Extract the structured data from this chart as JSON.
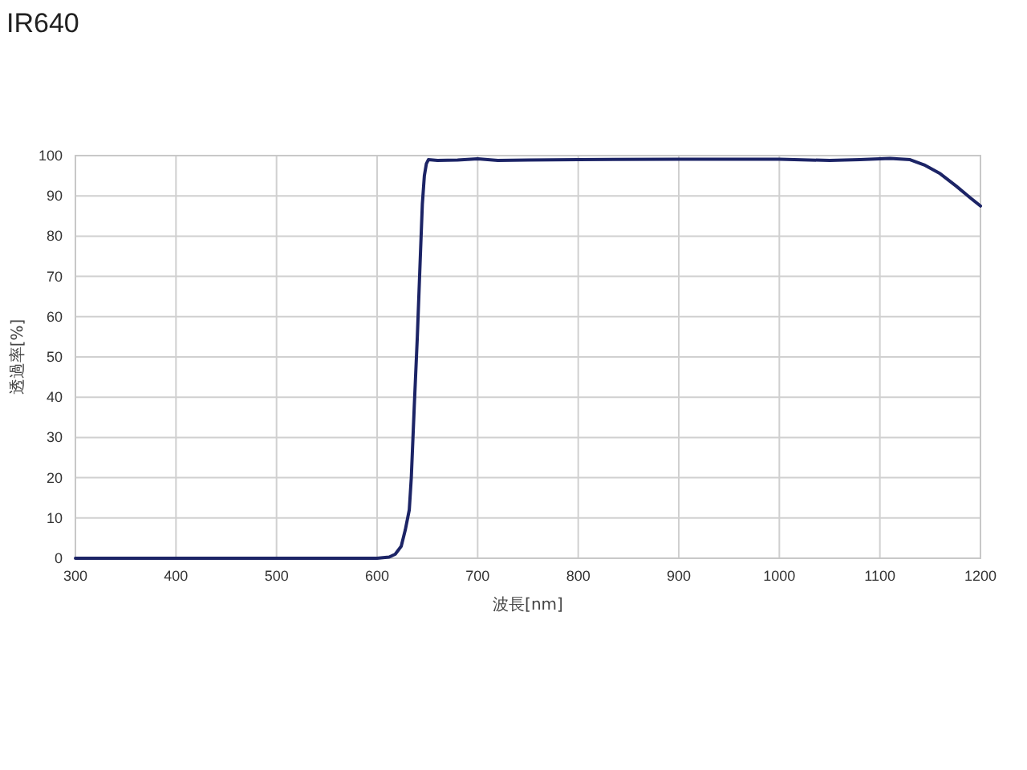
{
  "chart_data": {
    "type": "line",
    "title": "IR640",
    "xlabel": "波長[nm]",
    "ylabel": "透過率[%]",
    "xlim": [
      300,
      1200
    ],
    "xticks": [
      300,
      400,
      500,
      600,
      700,
      800,
      900,
      1000,
      1100,
      1200
    ],
    "ylim": [
      0,
      100
    ],
    "yticks": [
      0,
      10,
      20,
      30,
      40,
      50,
      60,
      70,
      80,
      90,
      100
    ],
    "grid": true,
    "series": [
      {
        "color": "#1c2466",
        "x": [
          300,
          400,
          500,
          600,
          612,
          618,
          624,
          628,
          632,
          634,
          637,
          640,
          643,
          645,
          647,
          649,
          651,
          660,
          680,
          700,
          720,
          750,
          800,
          900,
          1000,
          1050,
          1080,
          1110,
          1130,
          1144,
          1160,
          1176,
          1190,
          1200
        ],
        "values": [
          0,
          0,
          0,
          0,
          0.3,
          1,
          3,
          7,
          12,
          20,
          38,
          55,
          75,
          88,
          95,
          98,
          99,
          98.8,
          98.9,
          99.2,
          98.8,
          98.9,
          99,
          99.1,
          99.1,
          98.8,
          99,
          99.3,
          99,
          97.7,
          95.5,
          92.4,
          89.5,
          87.5
        ]
      }
    ]
  }
}
